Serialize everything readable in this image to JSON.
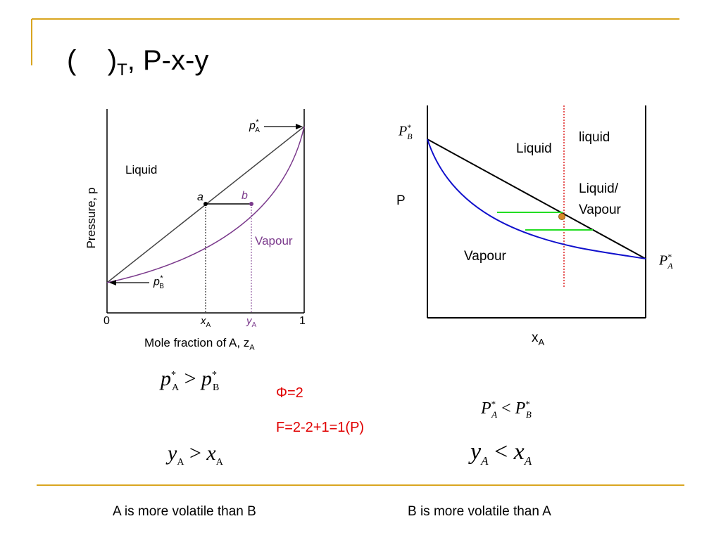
{
  "slide": {
    "title_main": "(    )",
    "title_sub": "T",
    "title_rest": ", P-x-y",
    "accent_color": "#d9a520"
  },
  "left_chart": {
    "ylabel": "Pressure, p",
    "xlabel": "Mole fraction of A, z",
    "xlabel_sub": "A",
    "tick_zero": "0",
    "tick_one": "1",
    "tick_xa": "x",
    "tick_xa_sub": "A",
    "tick_ya": "y",
    "tick_ya_sub": "A",
    "region_liquid": "Liquid",
    "region_vapour": "Vapour",
    "point_a": "a",
    "point_b": "b",
    "pa_label": "p",
    "pa_sup": "*",
    "pa_sub": "A",
    "pb_label": "p",
    "pb_sup": "*",
    "pb_sub": "B",
    "liquid_line_color": "#444444",
    "vapour_curve_color": "#7b3a8c"
  },
  "right_chart": {
    "pb_label": "P",
    "pb_sub": "B",
    "pb_sup": "*",
    "pa_label": "P",
    "pa_sub": "A",
    "pa_sup": "*",
    "ylabel": "P",
    "xlabel": "x",
    "xlabel_sub": "A",
    "region_liquid": "Liquid",
    "region_liquid_small": "liquid",
    "region_mixed_1": "Liquid/",
    "region_mixed_2": "Vapour",
    "region_vapour": "Vapour",
    "liquid_line_color": "#000000",
    "vapour_curve_color": "#1010cc",
    "tie_line_color": "#22dd22",
    "isopleth_color": "#dd2222",
    "point_color": "#d88a2a"
  },
  "equations": {
    "left_ineq_1_a": "p",
    "left_ineq_1_a_sup": "*",
    "left_ineq_1_a_sub": "A",
    "left_ineq_1_op": ">",
    "left_ineq_1_b": "p",
    "left_ineq_1_b_sup": "*",
    "left_ineq_1_b_sub": "B",
    "left_ineq_2_a": "y",
    "left_ineq_2_a_sub": "A",
    "left_ineq_2_op": ">",
    "left_ineq_2_b": "x",
    "left_ineq_2_b_sub": "A",
    "phi": "Φ=2",
    "dof": "F=2-2+1=1(P)",
    "right_ineq_1_a": "P",
    "right_ineq_1_a_sup": "*",
    "right_ineq_1_a_sub": "A",
    "right_ineq_1_op": "<",
    "right_ineq_1_b": "P",
    "right_ineq_1_b_sup": "*",
    "right_ineq_1_b_sub": "B",
    "right_ineq_2_a": "y",
    "right_ineq_2_a_sub": "A",
    "right_ineq_2_op": "<",
    "right_ineq_2_b": "x",
    "right_ineq_2_b_sub": "A"
  },
  "footer": {
    "left_caption": "A is more volatile than B",
    "right_caption": "B is more volatile than A"
  }
}
